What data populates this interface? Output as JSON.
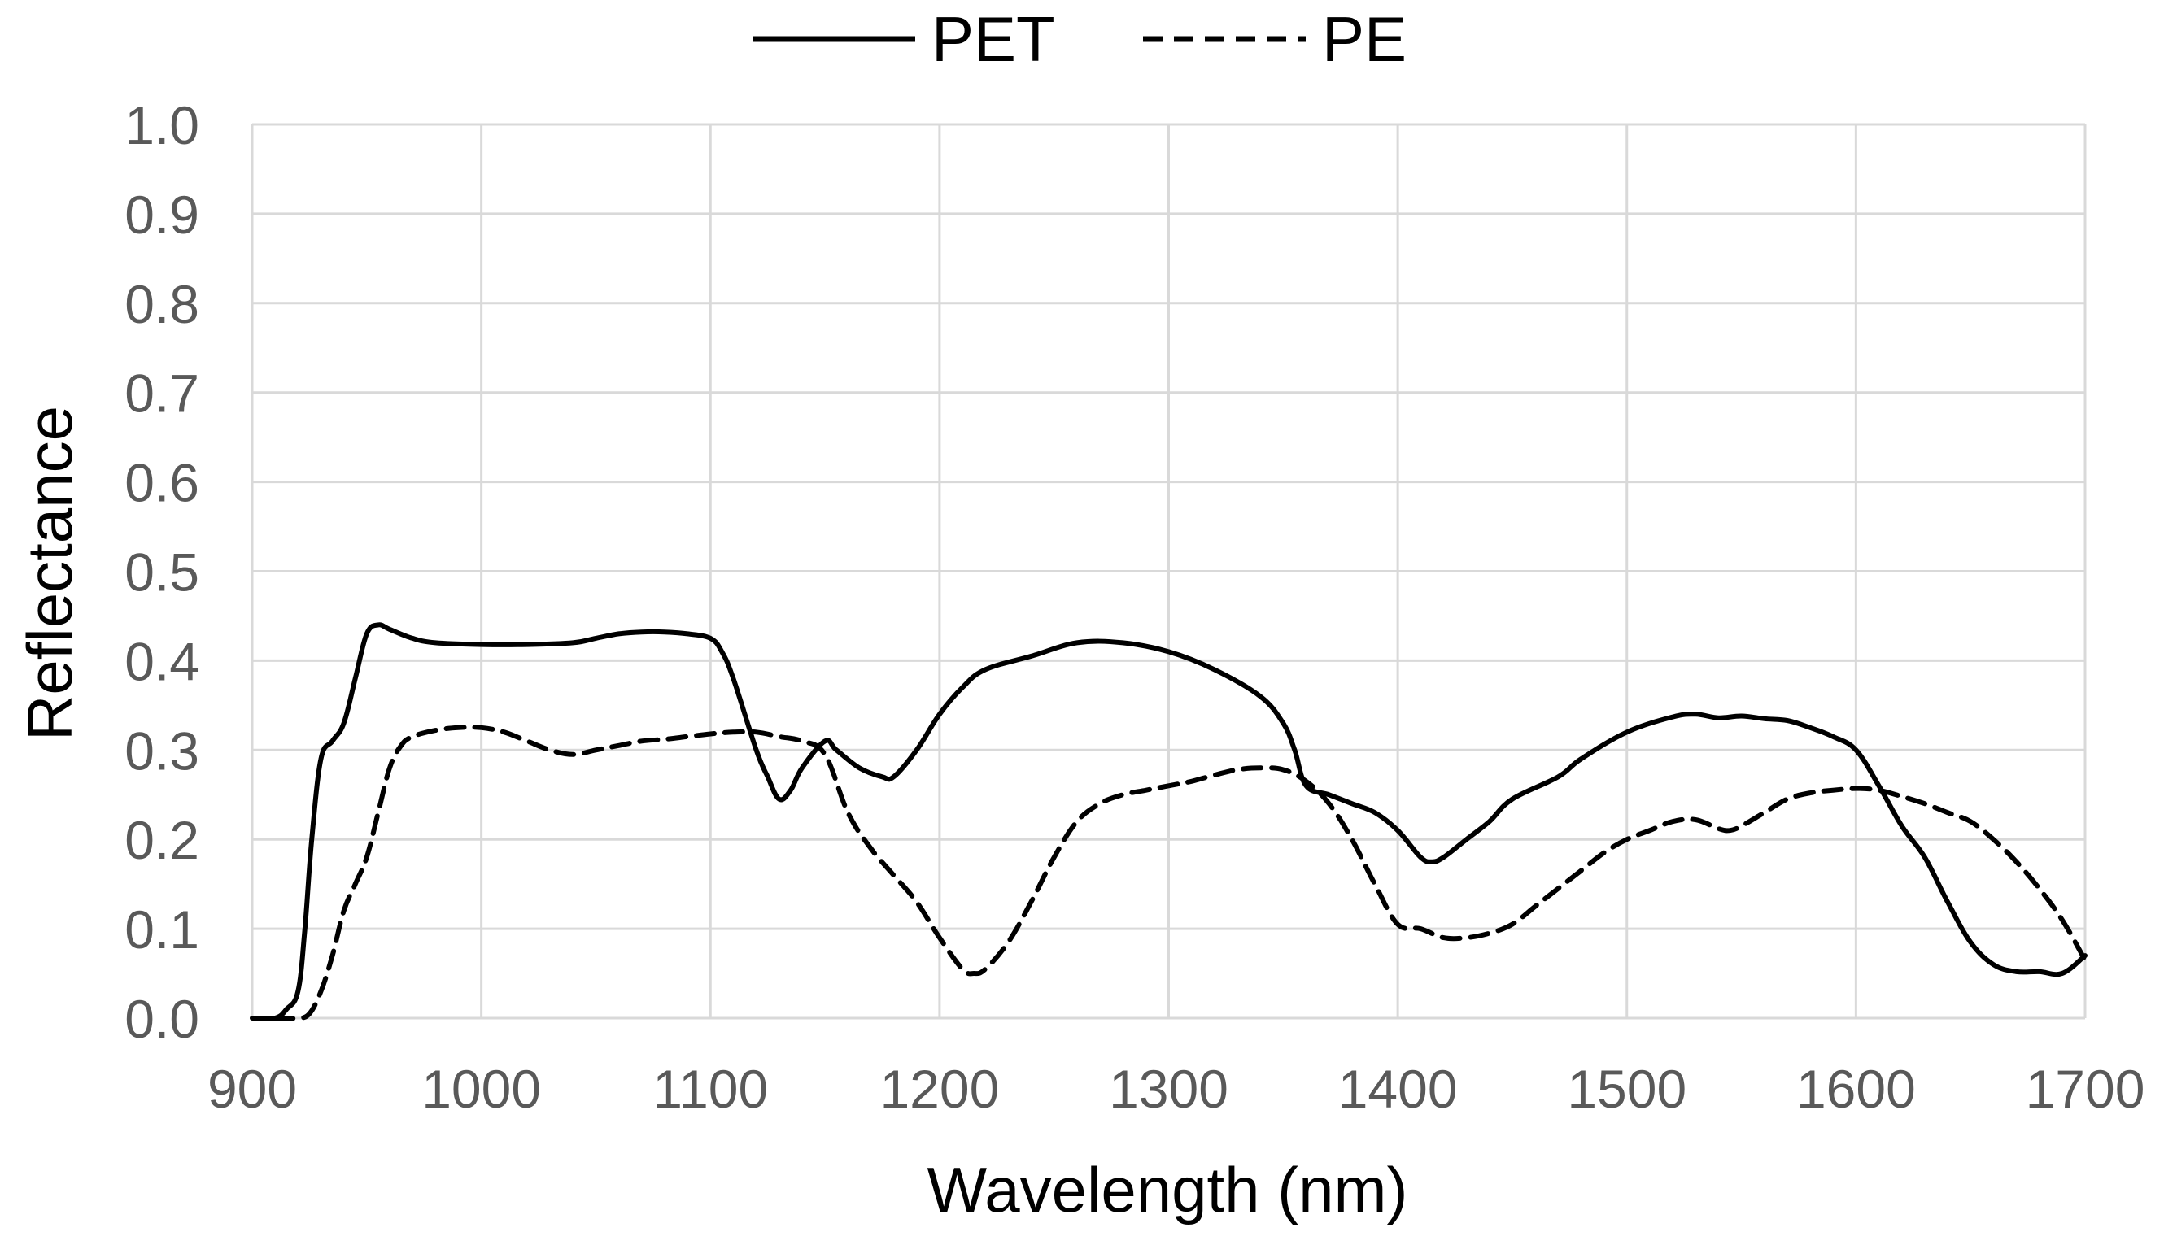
{
  "chart_data": {
    "type": "line",
    "title": "",
    "xlabel": "Wavelength (nm)",
    "ylabel": "Reflectance",
    "xlim": [
      900,
      1700
    ],
    "ylim": [
      0.0,
      1.0
    ],
    "grid": true,
    "legend_position": "top-center",
    "x_ticks": [
      900,
      1000,
      1100,
      1200,
      1300,
      1400,
      1500,
      1600,
      1700
    ],
    "x_tick_labels": [
      "900",
      "1000",
      "1100",
      "1200",
      "1300",
      "1400",
      "1500",
      "1600",
      "1700"
    ],
    "y_ticks": [
      0.0,
      0.1,
      0.2,
      0.3,
      0.4,
      0.5,
      0.6,
      0.7,
      0.8,
      0.9,
      1.0
    ],
    "y_tick_labels": [
      "0.0",
      "0.1",
      "0.2",
      "0.3",
      "0.4",
      "0.5",
      "0.6",
      "0.7",
      "0.8",
      "0.9",
      "1.0"
    ],
    "colors": {
      "series": "#000000",
      "grid": "#d9d9d9",
      "tick_text": "#595959",
      "title_text": "#000000"
    },
    "series": [
      {
        "name": "PET",
        "style": "solid",
        "points": [
          [
            900,
            0.0
          ],
          [
            910,
            0.0
          ],
          [
            915,
            0.01
          ],
          [
            920,
            0.03
          ],
          [
            923,
            0.1
          ],
          [
            926,
            0.2
          ],
          [
            930,
            0.29
          ],
          [
            935,
            0.31
          ],
          [
            940,
            0.33
          ],
          [
            945,
            0.38
          ],
          [
            950,
            0.43
          ],
          [
            955,
            0.44
          ],
          [
            960,
            0.435
          ],
          [
            970,
            0.425
          ],
          [
            980,
            0.42
          ],
          [
            1000,
            0.418
          ],
          [
            1020,
            0.418
          ],
          [
            1040,
            0.42
          ],
          [
            1050,
            0.425
          ],
          [
            1060,
            0.43
          ],
          [
            1070,
            0.432
          ],
          [
            1080,
            0.432
          ],
          [
            1090,
            0.43
          ],
          [
            1100,
            0.425
          ],
          [
            1105,
            0.41
          ],
          [
            1110,
            0.38
          ],
          [
            1120,
            0.3
          ],
          [
            1125,
            0.27
          ],
          [
            1130,
            0.245
          ],
          [
            1135,
            0.255
          ],
          [
            1140,
            0.28
          ],
          [
            1150,
            0.31
          ],
          [
            1155,
            0.3
          ],
          [
            1165,
            0.28
          ],
          [
            1175,
            0.27
          ],
          [
            1180,
            0.27
          ],
          [
            1190,
            0.3
          ],
          [
            1200,
            0.34
          ],
          [
            1210,
            0.37
          ],
          [
            1220,
            0.39
          ],
          [
            1240,
            0.405
          ],
          [
            1260,
            0.42
          ],
          [
            1280,
            0.42
          ],
          [
            1300,
            0.41
          ],
          [
            1320,
            0.39
          ],
          [
            1340,
            0.36
          ],
          [
            1350,
            0.33
          ],
          [
            1355,
            0.3
          ],
          [
            1360,
            0.26
          ],
          [
            1370,
            0.25
          ],
          [
            1380,
            0.24
          ],
          [
            1390,
            0.23
          ],
          [
            1400,
            0.21
          ],
          [
            1410,
            0.18
          ],
          [
            1415,
            0.175
          ],
          [
            1420,
            0.18
          ],
          [
            1430,
            0.2
          ],
          [
            1440,
            0.22
          ],
          [
            1450,
            0.245
          ],
          [
            1470,
            0.27
          ],
          [
            1480,
            0.29
          ],
          [
            1500,
            0.32
          ],
          [
            1520,
            0.337
          ],
          [
            1530,
            0.34
          ],
          [
            1540,
            0.336
          ],
          [
            1550,
            0.338
          ],
          [
            1560,
            0.335
          ],
          [
            1570,
            0.333
          ],
          [
            1580,
            0.325
          ],
          [
            1590,
            0.315
          ],
          [
            1600,
            0.3
          ],
          [
            1610,
            0.26
          ],
          [
            1620,
            0.215
          ],
          [
            1630,
            0.18
          ],
          [
            1640,
            0.13
          ],
          [
            1650,
            0.085
          ],
          [
            1660,
            0.06
          ],
          [
            1670,
            0.052
          ],
          [
            1680,
            0.052
          ],
          [
            1690,
            0.05
          ],
          [
            1700,
            0.07
          ]
        ]
      },
      {
        "name": "PE",
        "style": "dashed",
        "points": [
          [
            910,
            0.0
          ],
          [
            920,
            0.0
          ],
          [
            925,
            0.005
          ],
          [
            930,
            0.03
          ],
          [
            935,
            0.07
          ],
          [
            940,
            0.12
          ],
          [
            945,
            0.15
          ],
          [
            950,
            0.18
          ],
          [
            955,
            0.23
          ],
          [
            960,
            0.28
          ],
          [
            965,
            0.305
          ],
          [
            970,
            0.315
          ],
          [
            980,
            0.322
          ],
          [
            990,
            0.325
          ],
          [
            1000,
            0.325
          ],
          [
            1010,
            0.32
          ],
          [
            1020,
            0.31
          ],
          [
            1030,
            0.3
          ],
          [
            1040,
            0.295
          ],
          [
            1050,
            0.3
          ],
          [
            1060,
            0.305
          ],
          [
            1070,
            0.31
          ],
          [
            1080,
            0.312
          ],
          [
            1090,
            0.315
          ],
          [
            1100,
            0.318
          ],
          [
            1110,
            0.32
          ],
          [
            1120,
            0.32
          ],
          [
            1130,
            0.315
          ],
          [
            1140,
            0.31
          ],
          [
            1150,
            0.295
          ],
          [
            1160,
            0.23
          ],
          [
            1170,
            0.19
          ],
          [
            1180,
            0.16
          ],
          [
            1190,
            0.13
          ],
          [
            1200,
            0.09
          ],
          [
            1210,
            0.055
          ],
          [
            1215,
            0.05
          ],
          [
            1220,
            0.055
          ],
          [
            1230,
            0.085
          ],
          [
            1240,
            0.13
          ],
          [
            1250,
            0.18
          ],
          [
            1260,
            0.22
          ],
          [
            1270,
            0.24
          ],
          [
            1280,
            0.25
          ],
          [
            1290,
            0.255
          ],
          [
            1300,
            0.26
          ],
          [
            1310,
            0.265
          ],
          [
            1320,
            0.272
          ],
          [
            1330,
            0.278
          ],
          [
            1340,
            0.28
          ],
          [
            1350,
            0.278
          ],
          [
            1360,
            0.265
          ],
          [
            1370,
            0.24
          ],
          [
            1380,
            0.2
          ],
          [
            1390,
            0.15
          ],
          [
            1400,
            0.105
          ],
          [
            1410,
            0.1
          ],
          [
            1420,
            0.09
          ],
          [
            1430,
            0.09
          ],
          [
            1440,
            0.095
          ],
          [
            1450,
            0.105
          ],
          [
            1460,
            0.125
          ],
          [
            1470,
            0.145
          ],
          [
            1480,
            0.165
          ],
          [
            1490,
            0.185
          ],
          [
            1500,
            0.2
          ],
          [
            1510,
            0.21
          ],
          [
            1520,
            0.22
          ],
          [
            1530,
            0.222
          ],
          [
            1540,
            0.212
          ],
          [
            1545,
            0.21
          ],
          [
            1550,
            0.215
          ],
          [
            1560,
            0.23
          ],
          [
            1570,
            0.245
          ],
          [
            1580,
            0.252
          ],
          [
            1590,
            0.255
          ],
          [
            1600,
            0.257
          ],
          [
            1610,
            0.255
          ],
          [
            1620,
            0.248
          ],
          [
            1630,
            0.24
          ],
          [
            1640,
            0.23
          ],
          [
            1650,
            0.22
          ],
          [
            1660,
            0.2
          ],
          [
            1670,
            0.175
          ],
          [
            1680,
            0.145
          ],
          [
            1690,
            0.11
          ],
          [
            1700,
            0.065
          ]
        ]
      }
    ]
  }
}
